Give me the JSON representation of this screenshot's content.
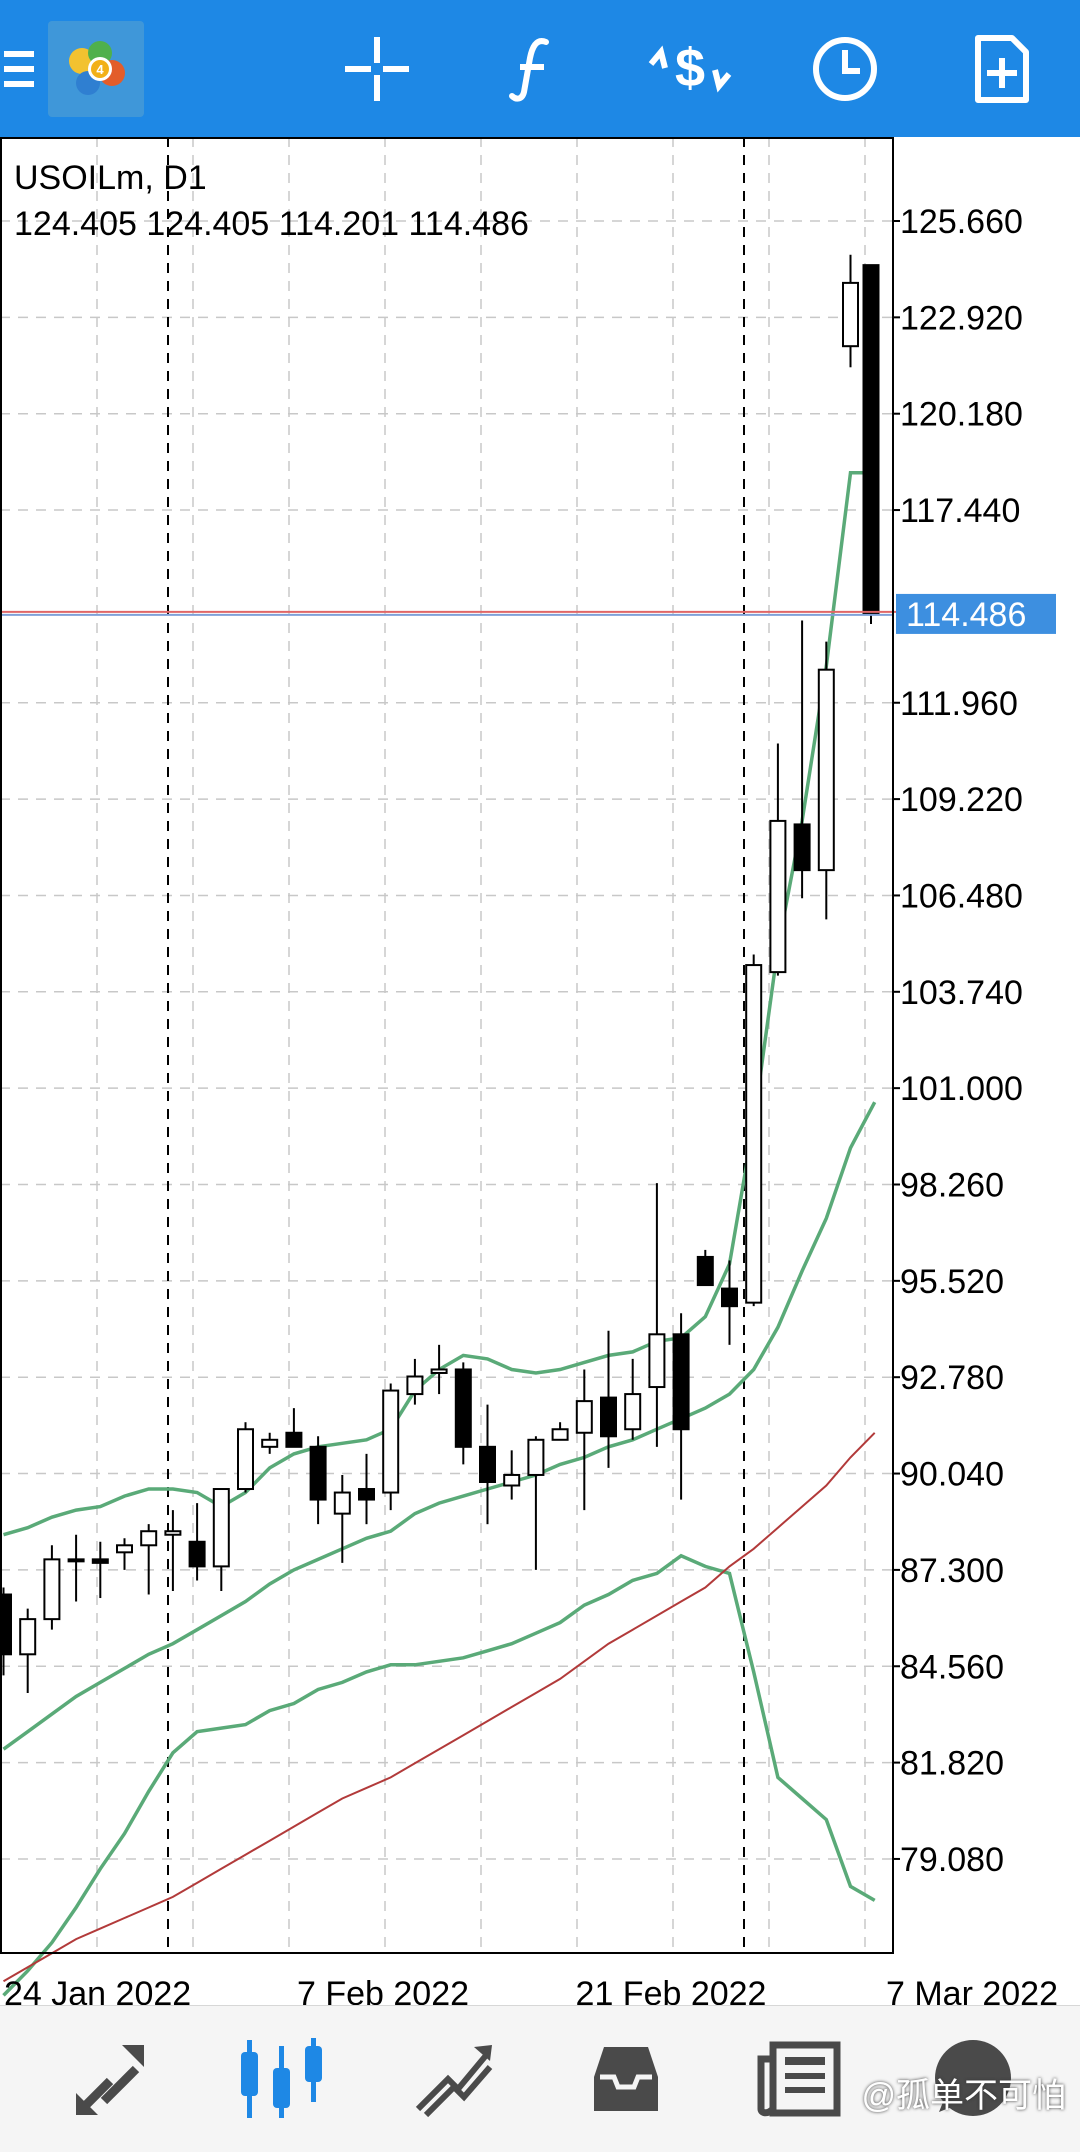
{
  "topbar": {
    "icons": [
      "menu-icon",
      "mt4-logo",
      "crosshair-icon",
      "indicators-icon",
      "trade-icon",
      "timeframe-icon",
      "new-chart-icon"
    ]
  },
  "chart": {
    "symbol_line": "USOILm, D1",
    "ohlc_line": "124.405 124.405 114.201 114.486",
    "current_price_label": "114.486",
    "colors": {
      "background": "#ffffff",
      "grid": "#c8c8c8",
      "bollinger": "#5aaa78",
      "moving_average": "#b23a3a",
      "bid_line": "#e06666",
      "ask_line": "#7fa0d8",
      "price_label_bg": "#3d8fe0"
    }
  },
  "chart_data": {
    "type": "candlestick",
    "symbol": "USOILm",
    "timeframe": "D1",
    "y_axis_ticks": [
      "125.660",
      "122.920",
      "120.180",
      "117.440",
      "114.486",
      "111.960",
      "109.220",
      "106.480",
      "103.740",
      "101.000",
      "98.260",
      "95.520",
      "92.780",
      "90.040",
      "87.300",
      "84.560",
      "81.820",
      "79.080"
    ],
    "ylim": [
      77.5,
      127.2
    ],
    "x_axis_ticks": [
      "24 Jan 2022",
      "7 Feb 2022",
      "21 Feb 2022",
      "7 Mar 2022"
    ],
    "candles": [
      {
        "o": 86.6,
        "h": 86.8,
        "l": 84.3,
        "c": 84.9
      },
      {
        "o": 84.9,
        "h": 86.2,
        "l": 83.8,
        "c": 85.9
      },
      {
        "o": 85.9,
        "h": 88.0,
        "l": 85.6,
        "c": 87.6
      },
      {
        "o": 87.6,
        "h": 88.3,
        "l": 86.4,
        "c": 87.6
      },
      {
        "o": 87.6,
        "h": 88.1,
        "l": 86.5,
        "c": 87.5
      },
      {
        "o": 87.8,
        "h": 88.2,
        "l": 87.3,
        "c": 88.0
      },
      {
        "o": 88.0,
        "h": 88.6,
        "l": 86.6,
        "c": 88.4
      },
      {
        "o": 88.3,
        "h": 89.0,
        "l": 86.7,
        "c": 88.4
      },
      {
        "o": 88.1,
        "h": 89.2,
        "l": 87.0,
        "c": 87.4
      },
      {
        "o": 87.4,
        "h": 89.6,
        "l": 86.7,
        "c": 89.6
      },
      {
        "o": 89.6,
        "h": 91.5,
        "l": 89.5,
        "c": 91.3
      },
      {
        "o": 90.8,
        "h": 91.2,
        "l": 90.6,
        "c": 91.0
      },
      {
        "o": 91.2,
        "h": 91.9,
        "l": 90.8,
        "c": 90.8
      },
      {
        "o": 90.8,
        "h": 91.1,
        "l": 88.6,
        "c": 89.3
      },
      {
        "o": 88.9,
        "h": 90.0,
        "l": 87.5,
        "c": 89.5
      },
      {
        "o": 89.6,
        "h": 90.6,
        "l": 88.6,
        "c": 89.3
      },
      {
        "o": 89.5,
        "h": 92.6,
        "l": 89.0,
        "c": 92.4
      },
      {
        "o": 92.3,
        "h": 93.3,
        "l": 92.0,
        "c": 92.8
      },
      {
        "o": 92.9,
        "h": 93.7,
        "l": 92.3,
        "c": 93.0
      },
      {
        "o": 93.0,
        "h": 93.2,
        "l": 90.3,
        "c": 90.8
      },
      {
        "o": 90.8,
        "h": 92.0,
        "l": 88.6,
        "c": 89.8
      },
      {
        "o": 89.7,
        "h": 90.7,
        "l": 89.3,
        "c": 90.0
      },
      {
        "o": 90.0,
        "h": 91.1,
        "l": 87.3,
        "c": 91.0
      },
      {
        "o": 91.0,
        "h": 91.5,
        "l": 91.1,
        "c": 91.3
      },
      {
        "o": 91.2,
        "h": 93.0,
        "l": 89.0,
        "c": 92.1
      },
      {
        "o": 92.2,
        "h": 94.1,
        "l": 90.2,
        "c": 91.1
      },
      {
        "o": 91.3,
        "h": 93.3,
        "l": 91.0,
        "c": 92.3
      },
      {
        "o": 92.5,
        "h": 98.3,
        "l": 90.8,
        "c": 94.0
      },
      {
        "o": 94.0,
        "h": 94.6,
        "l": 89.3,
        "c": 91.3
      },
      {
        "o": 96.2,
        "h": 96.4,
        "l": 95.4,
        "c": 95.4
      },
      {
        "o": 95.3,
        "h": 96.1,
        "l": 93.7,
        "c": 94.8
      },
      {
        "o": 94.9,
        "h": 104.8,
        "l": 94.8,
        "c": 104.5
      },
      {
        "o": 104.3,
        "h": 110.8,
        "l": 104.2,
        "c": 108.6
      },
      {
        "o": 108.5,
        "h": 114.3,
        "l": 106.4,
        "c": 107.2
      },
      {
        "o": 107.2,
        "h": 113.7,
        "l": 105.8,
        "c": 112.9
      },
      {
        "o": 122.1,
        "h": 124.7,
        "l": 121.5,
        "c": 123.9
      },
      {
        "o": 124.405,
        "h": 124.405,
        "l": 114.201,
        "c": 114.486
      }
    ],
    "series": [
      {
        "values": [
          88.3,
          88.5,
          88.8,
          89.0,
          89.1,
          89.4,
          89.6,
          89.6,
          89.5,
          89.1,
          89.5,
          90.2,
          90.6,
          90.8,
          90.9,
          91.0,
          91.3,
          92.4,
          93.0,
          93.4,
          93.3,
          93.0,
          92.9,
          93.0,
          93.2,
          93.4,
          93.5,
          93.8,
          93.9,
          94.5,
          96.0,
          100.0,
          105.0,
          108.6,
          113.0,
          118.5,
          118.5
        ]
      },
      {
        "values": [
          82.2,
          82.7,
          83.2,
          83.7,
          84.1,
          84.5,
          84.9,
          85.2,
          85.6,
          86.0,
          86.4,
          86.9,
          87.3,
          87.6,
          87.9,
          88.2,
          88.4,
          88.9,
          89.2,
          89.4,
          89.6,
          89.8,
          90.0,
          90.3,
          90.5,
          90.8,
          91.0,
          91.3,
          91.6,
          91.9,
          92.3,
          93.0,
          94.2,
          95.8,
          97.3,
          99.3,
          100.6
        ]
      },
      {
        "values": [
          75.2,
          75.9,
          76.7,
          77.7,
          78.8,
          79.8,
          81.0,
          82.1,
          82.7,
          82.8,
          82.9,
          83.3,
          83.5,
          83.9,
          84.1,
          84.4,
          84.6,
          84.6,
          84.7,
          84.8,
          85.0,
          85.2,
          85.5,
          85.8,
          86.3,
          86.6,
          87.0,
          87.2,
          87.7,
          87.4,
          87.2,
          84.4,
          81.4,
          80.8,
          80.2,
          78.3,
          77.9
        ]
      },
      {
        "values": [
          75.6,
          76.0,
          76.4,
          76.8,
          77.1,
          77.4,
          77.7,
          78.0,
          78.4,
          78.8,
          79.2,
          79.6,
          80.0,
          80.4,
          80.8,
          81.1,
          81.4,
          81.8,
          82.2,
          82.6,
          83.0,
          83.4,
          83.8,
          84.2,
          84.7,
          85.2,
          85.6,
          86.0,
          86.4,
          86.8,
          87.4,
          87.9,
          88.5,
          89.1,
          89.7,
          90.5,
          91.2
        ]
      }
    ],
    "grid": true
  },
  "bottombar": {
    "icons": [
      "quotes-icon",
      "chart-icon",
      "trade-icon",
      "history-icon",
      "news-icon"
    ],
    "active": "chart-icon"
  },
  "watermark": "@孤单不可怕"
}
